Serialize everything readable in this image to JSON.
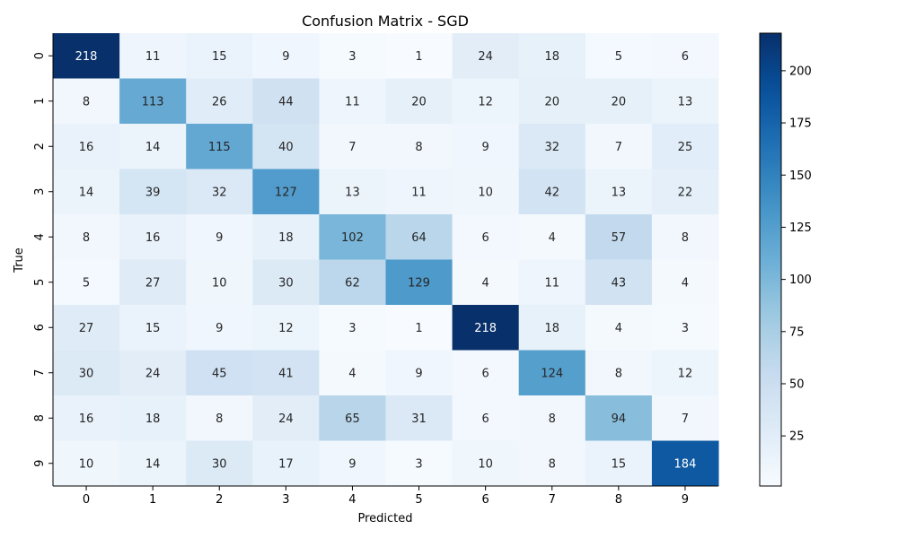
{
  "chart_data": {
    "type": "heatmap",
    "title": "Confusion Matrix - SGD",
    "xlabel": "Predicted",
    "ylabel": "True",
    "x_categories": [
      "0",
      "1",
      "2",
      "3",
      "4",
      "5",
      "6",
      "7",
      "8",
      "9"
    ],
    "y_categories": [
      "0",
      "1",
      "2",
      "3",
      "4",
      "5",
      "6",
      "7",
      "8",
      "9"
    ],
    "values": [
      [
        218,
        11,
        15,
        9,
        3,
        1,
        24,
        18,
        5,
        6
      ],
      [
        8,
        113,
        26,
        44,
        11,
        20,
        12,
        20,
        20,
        13
      ],
      [
        16,
        14,
        115,
        40,
        7,
        8,
        9,
        32,
        7,
        25
      ],
      [
        14,
        39,
        32,
        127,
        13,
        11,
        10,
        42,
        13,
        22
      ],
      [
        8,
        16,
        9,
        18,
        102,
        64,
        6,
        4,
        57,
        8
      ],
      [
        5,
        27,
        10,
        30,
        62,
        129,
        4,
        11,
        43,
        4
      ],
      [
        27,
        15,
        9,
        12,
        3,
        1,
        218,
        18,
        4,
        3
      ],
      [
        30,
        24,
        45,
        41,
        4,
        9,
        6,
        124,
        8,
        12
      ],
      [
        16,
        18,
        8,
        24,
        65,
        31,
        6,
        8,
        94,
        7
      ],
      [
        10,
        14,
        30,
        17,
        9,
        3,
        10,
        8,
        15,
        184
      ]
    ],
    "colormap": "Blues",
    "vmin": 1,
    "vmax": 218,
    "colorbar_ticks": [
      25,
      50,
      75,
      100,
      125,
      150,
      175,
      200
    ],
    "grid": false
  }
}
